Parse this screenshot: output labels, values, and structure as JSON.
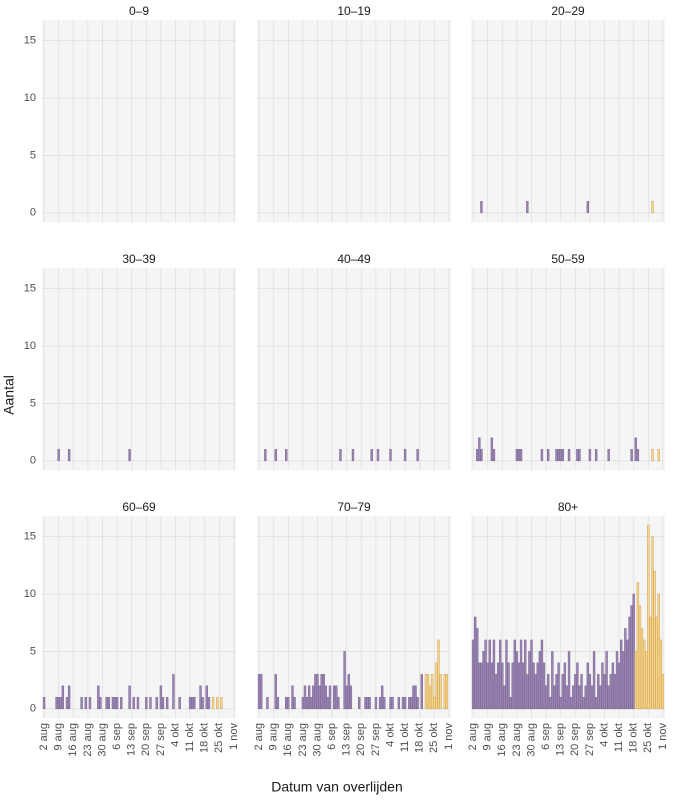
{
  "axis_labels": {
    "x": "Datum van overlijden",
    "y": "Aantal"
  },
  "chart_data": [
    {
      "type": "bar",
      "title": "0–9",
      "xlim": [
        "1 aug",
        "2 nov"
      ],
      "ylim": [
        -0.8,
        16.8
      ],
      "yticks": [
        0,
        5,
        10,
        15
      ],
      "xticks": [
        "2 aug",
        "9 aug",
        "16 aug",
        "23 aug",
        "30 aug",
        "6 sep",
        "13 sep",
        "20 sep",
        "27 sep",
        "4 okt",
        "11 okt",
        "18 okt",
        "25 okt",
        "1 nov"
      ],
      "series": []
    },
    {
      "type": "bar",
      "title": "10–19",
      "xlim": [
        "1 aug",
        "2 nov"
      ],
      "ylim": [
        -0.8,
        16.8
      ],
      "yticks": [
        0,
        5,
        10,
        15
      ],
      "xticks": [
        "2 aug",
        "9 aug",
        "16 aug",
        "23 aug",
        "30 aug",
        "6 sep",
        "13 sep",
        "20 sep",
        "27 sep",
        "4 okt",
        "11 okt",
        "18 okt",
        "25 okt",
        "1 nov"
      ],
      "series": []
    },
    {
      "type": "bar",
      "title": "20–29",
      "xlim": [
        "1 aug",
        "2 nov"
      ],
      "ylim": [
        -0.8,
        16.8
      ],
      "yticks": [
        0,
        5,
        10,
        15
      ],
      "xticks": [
        "2 aug",
        "9 aug",
        "16 aug",
        "23 aug",
        "30 aug",
        "6 sep",
        "13 sep",
        "20 sep",
        "27 sep",
        "4 okt",
        "11 okt",
        "18 okt",
        "25 okt",
        "1 nov"
      ],
      "series": [
        {
          "color": "#9b84b6",
          "x": [
            "6 aug",
            "28 aug",
            "26 sep"
          ],
          "values": [
            1,
            1,
            1
          ]
        },
        {
          "color": "#fdd584",
          "x": [
            "27 okt"
          ],
          "values": [
            1
          ]
        }
      ]
    },
    {
      "type": "bar",
      "title": "30–39",
      "xlim": [
        "1 aug",
        "2 nov"
      ],
      "ylim": [
        -0.8,
        16.8
      ],
      "yticks": [
        0,
        5,
        10,
        15
      ],
      "xticks": [
        "2 aug",
        "9 aug",
        "16 aug",
        "23 aug",
        "30 aug",
        "6 sep",
        "13 sep",
        "20 sep",
        "27 sep",
        "4 okt",
        "11 okt",
        "18 okt",
        "25 okt",
        "1 nov"
      ],
      "series": [
        {
          "color": "#9b84b6",
          "x": [
            "9 aug",
            "14 aug",
            "12 sep"
          ],
          "values": [
            1,
            1,
            1
          ]
        }
      ]
    },
    {
      "type": "bar",
      "title": "40–49",
      "xlim": [
        "1 aug",
        "2 nov"
      ],
      "ylim": [
        -0.8,
        16.8
      ],
      "yticks": [
        0,
        5,
        10,
        15
      ],
      "xticks": [
        "2 aug",
        "9 aug",
        "16 aug",
        "23 aug",
        "30 aug",
        "6 sep",
        "13 sep",
        "20 sep",
        "27 sep",
        "4 okt",
        "11 okt",
        "18 okt",
        "25 okt",
        "1 nov"
      ],
      "series": [
        {
          "color": "#9b84b6",
          "x": [
            "5 aug",
            "10 aug",
            "15 aug",
            "10 sep",
            "16 sep",
            "25 sep",
            "28 sep",
            "4 okt",
            "11 okt",
            "17 okt"
          ],
          "values": [
            1,
            1,
            1,
            1,
            1,
            1,
            1,
            1,
            1,
            1
          ]
        }
      ]
    },
    {
      "type": "bar",
      "title": "50–59",
      "xlim": [
        "1 aug",
        "2 nov"
      ],
      "ylim": [
        -0.8,
        16.8
      ],
      "yticks": [
        0,
        5,
        10,
        15
      ],
      "xticks": [
        "2 aug",
        "9 aug",
        "16 aug",
        "23 aug",
        "30 aug",
        "6 sep",
        "13 sep",
        "20 sep",
        "27 sep",
        "4 okt",
        "11 okt",
        "18 okt",
        "25 okt",
        "1 nov"
      ],
      "series": [
        {
          "color": "#9b84b6",
          "x": [
            "4 aug",
            "5 aug",
            "6 aug",
            "11 aug",
            "12 aug",
            "23 aug",
            "24 aug",
            "25 aug",
            "4 sep",
            "7 sep",
            "11 sep",
            "12 sep",
            "13 sep",
            "14 sep",
            "17 sep",
            "21 sep",
            "22 sep",
            "27 sep",
            "30 sep",
            "6 okt",
            "17 okt",
            "19 okt",
            "20 okt"
          ],
          "values": [
            1,
            2,
            1,
            2,
            1,
            1,
            1,
            1,
            1,
            1,
            1,
            1,
            1,
            1,
            1,
            1,
            1,
            1,
            1,
            1,
            1,
            2,
            1
          ]
        },
        {
          "color": "#fdd584",
          "x": [
            "27 okt",
            "30 okt"
          ],
          "values": [
            1,
            1
          ]
        }
      ]
    },
    {
      "type": "bar",
      "title": "60–69",
      "xlim": [
        "1 aug",
        "2 nov"
      ],
      "ylim": [
        -0.8,
        16.8
      ],
      "yticks": [
        0,
        5,
        10,
        15
      ],
      "xticks": [
        "2 aug",
        "9 aug",
        "16 aug",
        "23 aug",
        "30 aug",
        "6 sep",
        "13 sep",
        "20 sep",
        "27 sep",
        "4 okt",
        "11 okt",
        "18 okt",
        "25 okt",
        "1 nov"
      ],
      "series": [
        {
          "color": "#9b84b6",
          "x": [
            "2 aug",
            "8 aug",
            "9 aug",
            "10 aug",
            "11 aug",
            "13 aug",
            "14 aug",
            "20 aug",
            "22 aug",
            "24 aug",
            "28 aug",
            "29 aug",
            "1 sep",
            "2 sep",
            "4 sep",
            "5 sep",
            "6 sep",
            "8 sep",
            "12 sep",
            "14 sep",
            "16 sep",
            "20 sep",
            "22 sep",
            "25 sep",
            "27 sep",
            "28 sep",
            "30 sep",
            "3 okt",
            "6 okt",
            "11 okt",
            "12 okt",
            "13 okt",
            "16 okt",
            "17 okt",
            "19 okt",
            "20 okt"
          ],
          "values": [
            1,
            1,
            1,
            1,
            2,
            1,
            2,
            1,
            1,
            1,
            2,
            1,
            1,
            1,
            1,
            1,
            1,
            1,
            2,
            1,
            1,
            1,
            1,
            1,
            2,
            1,
            1,
            3,
            1,
            1,
            1,
            1,
            2,
            1,
            2,
            1
          ]
        },
        {
          "color": "#fdd584",
          "x": [
            "22 okt",
            "24 okt",
            "26 okt"
          ],
          "values": [
            1,
            1,
            1
          ]
        }
      ]
    },
    {
      "type": "bar",
      "title": "70–79",
      "xlim": [
        "1 aug",
        "2 nov"
      ],
      "ylim": [
        -0.8,
        16.8
      ],
      "yticks": [
        0,
        5,
        10,
        15
      ],
      "xticks": [
        "2 aug",
        "9 aug",
        "16 aug",
        "23 aug",
        "30 aug",
        "6 sep",
        "13 sep",
        "20 sep",
        "27 sep",
        "4 okt",
        "11 okt",
        "18 okt",
        "25 okt",
        "1 nov"
      ],
      "series": [
        {
          "color": "#9b84b6",
          "x": [
            "2 aug",
            "3 aug",
            "6 aug",
            "10 aug",
            "11 aug",
            "15 aug",
            "16 aug",
            "18 aug",
            "19 aug",
            "23 aug",
            "24 aug",
            "25 aug",
            "26 aug",
            "27 aug",
            "28 aug",
            "29 aug",
            "30 aug",
            "31 aug",
            "1 sep",
            "2 sep",
            "3 sep",
            "4 sep",
            "5 sep",
            "7 sep",
            "8 sep",
            "9 sep",
            "12 sep",
            "13 sep",
            "14 sep",
            "15 sep",
            "19 sep",
            "22 sep",
            "23 sep",
            "24 sep",
            "27 sep",
            "29 sep",
            "30 sep",
            "1 okt",
            "4 okt",
            "5 okt",
            "8 okt",
            "10 okt",
            "11 okt",
            "13 okt",
            "14 okt",
            "15 okt",
            "16 okt",
            "17 okt",
            "19 okt"
          ],
          "values": [
            3,
            3,
            1,
            3,
            1,
            1,
            1,
            2,
            1,
            1,
            2,
            1,
            2,
            1,
            2,
            3,
            3,
            2,
            3,
            3,
            2,
            1,
            2,
            2,
            2,
            1,
            5,
            2,
            3,
            2,
            1,
            1,
            1,
            1,
            1,
            1,
            2,
            1,
            1,
            1,
            1,
            1,
            1,
            1,
            1,
            2,
            2,
            1,
            3
          ]
        },
        {
          "color": "#fdd584",
          "x": [
            "21 okt",
            "22 okt",
            "23 okt",
            "24 okt",
            "25 okt",
            "26 okt",
            "27 okt",
            "28 okt",
            "30 okt",
            "31 okt"
          ],
          "values": [
            3,
            3,
            2,
            3,
            1,
            4,
            6,
            3,
            3,
            3
          ]
        }
      ]
    },
    {
      "type": "bar",
      "title": "80+",
      "xlim": [
        "1 aug",
        "2 nov"
      ],
      "ylim": [
        -0.8,
        16.8
      ],
      "yticks": [
        0,
        5,
        10,
        15
      ],
      "xticks": [
        "2 aug",
        "9 aug",
        "16 aug",
        "23 aug",
        "30 aug",
        "6 sep",
        "13 sep",
        "20 sep",
        "27 sep",
        "4 okt",
        "11 okt",
        "18 okt",
        "25 okt",
        "1 nov"
      ],
      "series": [
        {
          "color": "#9b84b6",
          "x": [
            "2 aug",
            "3 aug",
            "4 aug",
            "5 aug",
            "6 aug",
            "7 aug",
            "8 aug",
            "9 aug",
            "10 aug",
            "11 aug",
            "12 aug",
            "13 aug",
            "14 aug",
            "15 aug",
            "16 aug",
            "17 aug",
            "18 aug",
            "19 aug",
            "20 aug",
            "21 aug",
            "22 aug",
            "23 aug",
            "24 aug",
            "25 aug",
            "26 aug",
            "27 aug",
            "28 aug",
            "29 aug",
            "30 aug",
            "31 aug",
            "1 sep",
            "2 sep",
            "3 sep",
            "4 sep",
            "5 sep",
            "6 sep",
            "7 sep",
            "8 sep",
            "9 sep",
            "10 sep",
            "11 sep",
            "12 sep",
            "13 sep",
            "14 sep",
            "15 sep",
            "16 sep",
            "17 sep",
            "18 sep",
            "19 sep",
            "20 sep",
            "21 sep",
            "22 sep",
            "23 sep",
            "24 sep",
            "25 sep",
            "26 sep",
            "27 sep",
            "28 sep",
            "29 sep",
            "30 sep",
            "1 okt",
            "2 okt",
            "3 okt",
            "4 okt",
            "5 okt",
            "6 okt",
            "7 okt",
            "8 okt",
            "9 okt",
            "10 okt",
            "11 okt",
            "12 okt",
            "13 okt",
            "14 okt",
            "15 okt",
            "16 okt",
            "17 okt",
            "18 okt"
          ],
          "values": [
            6,
            8,
            7,
            4,
            4,
            5,
            6,
            4,
            6,
            4,
            6,
            3,
            4,
            6,
            4,
            2,
            6,
            4,
            1,
            4,
            6,
            5,
            4,
            6,
            4,
            6,
            3,
            5,
            6,
            4,
            3,
            4,
            5,
            6,
            4,
            2,
            3,
            1,
            5,
            2,
            3,
            4,
            1,
            3,
            4,
            2,
            5,
            1,
            2,
            3,
            4,
            2,
            3,
            1,
            2,
            4,
            3,
            2,
            5,
            1,
            3,
            2,
            4,
            3,
            5,
            2,
            3,
            4,
            3,
            5,
            4,
            6,
            5,
            7,
            6,
            8,
            9,
            10
          ]
        },
        {
          "color": "#fdd584",
          "x": [
            "19 okt",
            "20 okt",
            "21 okt",
            "22 okt",
            "23 okt",
            "24 okt",
            "25 okt",
            "26 okt",
            "27 okt",
            "28 okt",
            "29 okt",
            "30 okt",
            "31 okt",
            "1 nov"
          ],
          "values": [
            5,
            11,
            9,
            7,
            6,
            5,
            16,
            8,
            15,
            12,
            8,
            10,
            6,
            3
          ]
        }
      ]
    }
  ]
}
